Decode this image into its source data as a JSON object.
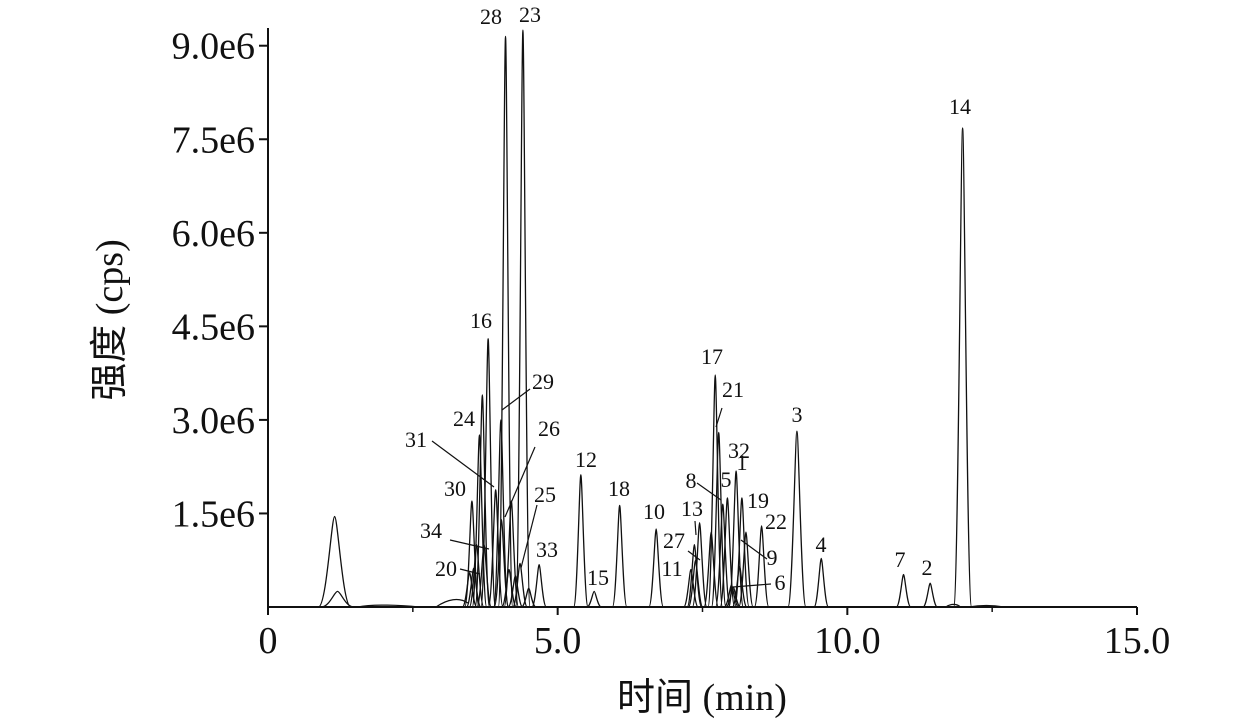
{
  "chart_data": {
    "type": "line",
    "title": "",
    "xlabel": "时间 (min)",
    "ylabel": "强度 (cps)",
    "xlim": [
      0,
      15
    ],
    "ylim": [
      0,
      9300000
    ],
    "x_ticks": [
      {
        "value": 0,
        "label": "0"
      },
      {
        "value": 5,
        "label": "5.0"
      },
      {
        "value": 10,
        "label": "10.0"
      },
      {
        "value": 15,
        "label": "15.0"
      }
    ],
    "y_ticks": [
      {
        "value": 1500000,
        "label": "1.5e6"
      },
      {
        "value": 3000000,
        "label": "3.0e6"
      },
      {
        "value": 4500000,
        "label": "4.5e6"
      },
      {
        "value": 6000000,
        "label": "6.0e6"
      },
      {
        "value": 7500000,
        "label": "7.5e6"
      },
      {
        "value": 9000000,
        "label": "9.0e6"
      }
    ],
    "grid": false,
    "legend": "none",
    "line_color": "#111111",
    "peaks": [
      {
        "label": "1",
        "x": 8.18,
        "y": 1750000
      },
      {
        "label": "2",
        "x": 11.43,
        "y": 380000
      },
      {
        "label": "3",
        "x": 9.13,
        "y": 2820000
      },
      {
        "label": "4",
        "x": 9.55,
        "y": 780000
      },
      {
        "label": "5",
        "x": 7.93,
        "y": 1750000
      },
      {
        "label": "6",
        "x": 8.03,
        "y": 320000
      },
      {
        "label": "7",
        "x": 10.97,
        "y": 520000
      },
      {
        "label": "8",
        "x": 7.85,
        "y": 1650000
      },
      {
        "label": "9",
        "x": 8.14,
        "y": 650000
      },
      {
        "label": "10",
        "x": 6.7,
        "y": 1250000
      },
      {
        "label": "11",
        "x": 7.3,
        "y": 600000
      },
      {
        "label": "12",
        "x": 5.4,
        "y": 2120000
      },
      {
        "label": "13",
        "x": 7.45,
        "y": 1350000
      },
      {
        "label": "14",
        "x": 11.99,
        "y": 7680000
      },
      {
        "label": "15",
        "x": 5.63,
        "y": 250000
      },
      {
        "label": "16",
        "x": 3.8,
        "y": 4300000
      },
      {
        "label": "17",
        "x": 7.72,
        "y": 3720000
      },
      {
        "label": "18",
        "x": 6.07,
        "y": 1630000
      },
      {
        "label": "19",
        "x": 8.25,
        "y": 1200000
      },
      {
        "label": "20",
        "x": 3.55,
        "y": 620000
      },
      {
        "label": "21",
        "x": 7.78,
        "y": 2800000
      },
      {
        "label": "22",
        "x": 8.52,
        "y": 1300000
      },
      {
        "label": "23",
        "x": 4.4,
        "y": 9250000
      },
      {
        "label": "24",
        "x": 3.65,
        "y": 2760000
      },
      {
        "label": "25",
        "x": 4.35,
        "y": 700000
      },
      {
        "label": "26",
        "x": 4.2,
        "y": 1700000
      },
      {
        "label": "27",
        "x": 7.38,
        "y": 750000
      },
      {
        "label": "28",
        "x": 4.1,
        "y": 9150000
      },
      {
        "label": "29",
        "x": 4.02,
        "y": 3000000
      },
      {
        "label": "30",
        "x": 3.52,
        "y": 1700000
      },
      {
        "label": "31",
        "x": 3.93,
        "y": 1880000
      },
      {
        "label": "32",
        "x": 8.08,
        "y": 2180000
      },
      {
        "label": "33",
        "x": 4.68,
        "y": 680000
      },
      {
        "label": "34",
        "x": 3.73,
        "y": 1000000
      }
    ],
    "extra_peaks": [
      {
        "x": 1.15,
        "y": 1450000
      },
      {
        "x": 1.2,
        "y": 250000
      },
      {
        "x": 3.7,
        "y": 3400000
      },
      {
        "x": 3.6,
        "y": 1000000
      },
      {
        "x": 3.48,
        "y": 550000
      },
      {
        "x": 4.03,
        "y": 1400000
      },
      {
        "x": 4.16,
        "y": 600000
      },
      {
        "x": 4.27,
        "y": 500000
      },
      {
        "x": 4.5,
        "y": 300000
      },
      {
        "x": 7.36,
        "y": 1000000
      },
      {
        "x": 7.65,
        "y": 1200000
      },
      {
        "x": 8.0,
        "y": 350000
      }
    ]
  }
}
